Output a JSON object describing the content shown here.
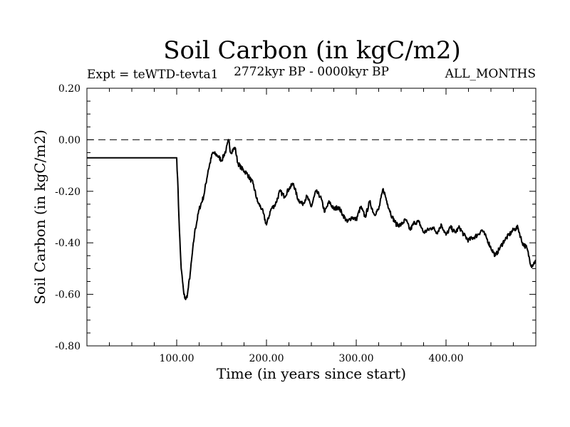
{
  "chart_data": {
    "type": "line",
    "title": "Soil Carbon (in kgC/m2)",
    "subtitle_left": "Expt = teWTD-tevta1",
    "subtitle_center": "2772kyr BP - 0000kyr BP",
    "subtitle_right": "ALL_MONTHS",
    "xlabel": "Time (in years since start)",
    "ylabel": "Soil Carbon (in kgC/m2)",
    "xlim": [
      0,
      500
    ],
    "ylim": [
      -0.8,
      0.2
    ],
    "x_ticks": [
      100,
      200,
      300,
      400
    ],
    "x_tick_labels": [
      "100.00",
      "200.00",
      "300.00",
      "400.00"
    ],
    "y_ticks": [
      -0.8,
      -0.6,
      -0.4,
      -0.2,
      0.0,
      0.2
    ],
    "y_tick_labels": [
      "-0.80",
      "-0.60",
      "-0.40",
      "-0.20",
      "0.00",
      "0.20"
    ],
    "reference_line": {
      "y": 0.0,
      "style": "dashed"
    },
    "series": [
      {
        "name": "Soil Carbon",
        "x": [
          0,
          100,
          101,
          103,
          105,
          108,
          110,
          112,
          115,
          120,
          125,
          130,
          135,
          140,
          145,
          150,
          155,
          158,
          160,
          165,
          168,
          172,
          178,
          185,
          190,
          195,
          200,
          205,
          210,
          215,
          220,
          225,
          230,
          235,
          240,
          245,
          250,
          255,
          260,
          265,
          270,
          275,
          280,
          285,
          290,
          295,
          300,
          305,
          310,
          315,
          320,
          325,
          330,
          335,
          340,
          345,
          350,
          355,
          360,
          365,
          370,
          375,
          380,
          385,
          390,
          395,
          400,
          405,
          410,
          415,
          420,
          425,
          430,
          435,
          440,
          445,
          450,
          455,
          460,
          465,
          470,
          475,
          480,
          485,
          490,
          495,
          500
        ],
        "values": [
          -0.07,
          -0.07,
          -0.15,
          -0.35,
          -0.5,
          -0.6,
          -0.62,
          -0.6,
          -0.52,
          -0.36,
          -0.27,
          -0.22,
          -0.12,
          -0.05,
          -0.06,
          -0.08,
          -0.04,
          0.0,
          -0.05,
          -0.03,
          -0.09,
          -0.11,
          -0.13,
          -0.17,
          -0.24,
          -0.27,
          -0.33,
          -0.27,
          -0.25,
          -0.2,
          -0.22,
          -0.19,
          -0.17,
          -0.23,
          -0.25,
          -0.22,
          -0.26,
          -0.2,
          -0.22,
          -0.28,
          -0.24,
          -0.27,
          -0.26,
          -0.29,
          -0.32,
          -0.3,
          -0.31,
          -0.26,
          -0.3,
          -0.24,
          -0.29,
          -0.27,
          -0.19,
          -0.25,
          -0.3,
          -0.33,
          -0.33,
          -0.31,
          -0.35,
          -0.32,
          -0.32,
          -0.36,
          -0.35,
          -0.34,
          -0.36,
          -0.33,
          -0.37,
          -0.34,
          -0.36,
          -0.34,
          -0.37,
          -0.39,
          -0.38,
          -0.37,
          -0.35,
          -0.38,
          -0.42,
          -0.45,
          -0.42,
          -0.39,
          -0.37,
          -0.35,
          -0.34,
          -0.4,
          -0.42,
          -0.49,
          -0.47
        ]
      }
    ]
  }
}
